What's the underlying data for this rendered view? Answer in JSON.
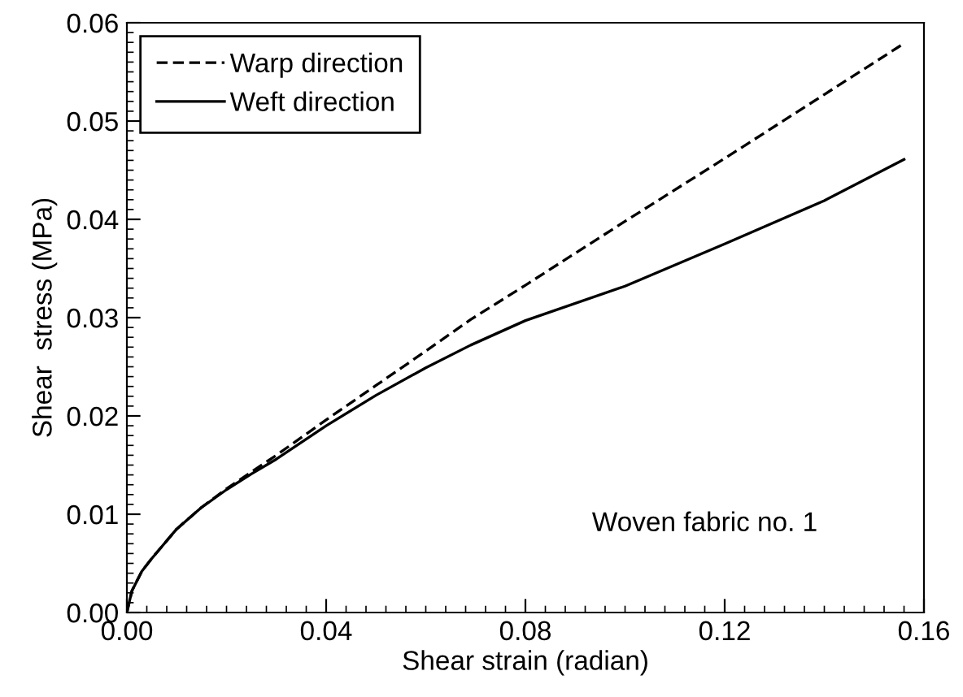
{
  "chart_data": {
    "type": "line",
    "xlabel": "Shear strain (radian)",
    "ylabel": "Shear  stress (MPa)",
    "xlim": [
      0,
      0.16
    ],
    "xticks": [
      {
        "value": 0,
        "label": "0.00"
      },
      0.04,
      0.08,
      0.12,
      0.16
    ],
    "ylim": [
      0,
      0.06
    ],
    "yticks": [
      {
        "value": 0,
        "label": "0.00"
      },
      0.01,
      0.02,
      0.03,
      0.04,
      0.05,
      0.06
    ],
    "x": [
      0,
      0.001,
      0.003,
      0.005,
      0.01,
      0.015,
      0.02,
      0.025,
      0.03,
      0.04,
      0.05,
      0.06,
      0.069,
      0.08,
      0.1,
      0.12,
      0.14,
      0.156
    ],
    "series": [
      {
        "name": "Warp direction",
        "color": "#000000",
        "line_style": "dashed",
        "values": [
          0,
          0.0022,
          0.0042,
          0.0055,
          0.0085,
          0.0107,
          0.0126,
          0.0143,
          0.016,
          0.0196,
          0.0231,
          0.0266,
          0.0298,
          0.0333,
          0.0398,
          0.0462,
          0.0527,
          0.0579
        ]
      },
      {
        "name": "Weft direction",
        "color": "#000000",
        "line_style": "solid",
        "values": [
          0,
          0.0022,
          0.0042,
          0.0055,
          0.0085,
          0.0107,
          0.0125,
          0.0141,
          0.0156,
          0.019,
          0.0221,
          0.0249,
          0.0272,
          0.0297,
          0.0332,
          0.0375,
          0.0419,
          0.0461
        ]
      }
    ],
    "legend": "top left",
    "grid": false,
    "annotations": [
      "Woven fabric no. 1"
    ]
  }
}
